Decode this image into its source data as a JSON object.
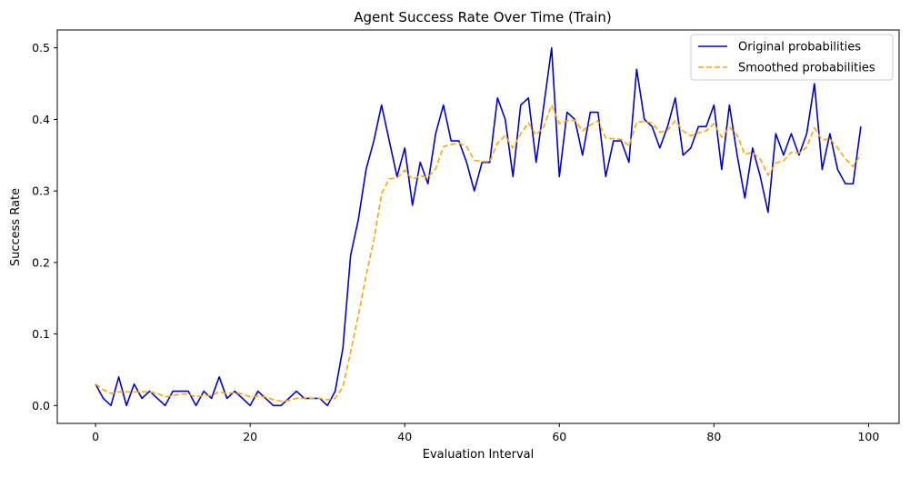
{
  "chart_data": {
    "type": "line",
    "title": "Agent Success Rate Over Time (Train)",
    "xlabel": "Evaluation Interval",
    "ylabel": "Success Rate",
    "xlim": [
      -4.95,
      103.95
    ],
    "ylim": [
      -0.025,
      0.525
    ],
    "xticks": [
      0,
      20,
      40,
      60,
      80,
      100
    ],
    "yticks": [
      0.0,
      0.1,
      0.2,
      0.3,
      0.4,
      0.5
    ],
    "xtick_labels": [
      "0",
      "20",
      "40",
      "60",
      "80",
      "100"
    ],
    "ytick_labels": [
      "0.0",
      "0.1",
      "0.2",
      "0.3",
      "0.4",
      "0.5"
    ],
    "grid": false,
    "legend_position": "top-right",
    "x": [
      0,
      1,
      2,
      3,
      4,
      5,
      6,
      7,
      8,
      9,
      10,
      11,
      12,
      13,
      14,
      15,
      16,
      17,
      18,
      19,
      20,
      21,
      22,
      23,
      24,
      25,
      26,
      27,
      28,
      29,
      30,
      31,
      32,
      33,
      34,
      35,
      36,
      37,
      38,
      39,
      40,
      41,
      42,
      43,
      44,
      45,
      46,
      47,
      48,
      49,
      50,
      51,
      52,
      53,
      54,
      55,
      56,
      57,
      58,
      59,
      60,
      61,
      62,
      63,
      64,
      65,
      66,
      67,
      68,
      69,
      70,
      71,
      72,
      73,
      74,
      75,
      76,
      77,
      78,
      79,
      80,
      81,
      82,
      83,
      84,
      85,
      86,
      87,
      88,
      89,
      90,
      91,
      92,
      93,
      94,
      95,
      96,
      97,
      98,
      99
    ],
    "series": [
      {
        "name": "Original probabilities",
        "color": "#0000cc",
        "style": "solid",
        "values": [
          0.03,
          0.01,
          0.0,
          0.04,
          0.0,
          0.03,
          0.01,
          0.02,
          0.01,
          0.0,
          0.02,
          0.02,
          0.02,
          0.0,
          0.02,
          0.01,
          0.04,
          0.01,
          0.02,
          0.01,
          0.0,
          0.02,
          0.01,
          0.0,
          0.0,
          0.01,
          0.02,
          0.01,
          0.01,
          0.01,
          0.0,
          0.02,
          0.08,
          0.21,
          0.26,
          0.33,
          0.37,
          0.42,
          0.37,
          0.32,
          0.36,
          0.28,
          0.34,
          0.31,
          0.38,
          0.42,
          0.37,
          0.37,
          0.34,
          0.3,
          0.34,
          0.34,
          0.43,
          0.4,
          0.32,
          0.42,
          0.43,
          0.34,
          0.42,
          0.5,
          0.32,
          0.41,
          0.4,
          0.35,
          0.41,
          0.41,
          0.32,
          0.37,
          0.37,
          0.34,
          0.47,
          0.4,
          0.39,
          0.36,
          0.39,
          0.43,
          0.35,
          0.36,
          0.39,
          0.39,
          0.42,
          0.33,
          0.42,
          0.35,
          0.29,
          0.36,
          0.32,
          0.27,
          0.38,
          0.35,
          0.38,
          0.35,
          0.38,
          0.45,
          0.33,
          0.38,
          0.33,
          0.31,
          0.31,
          0.39
        ]
      },
      {
        "name": "Smoothed probabilities",
        "color": "#ffa500",
        "style": "dashed",
        "values": [
          0.03,
          0.022,
          0.017,
          0.019,
          0.019,
          0.019,
          0.019,
          0.019,
          0.017,
          0.012,
          0.014,
          0.016,
          0.016,
          0.012,
          0.014,
          0.014,
          0.019,
          0.017,
          0.018,
          0.016,
          0.012,
          0.013,
          0.012,
          0.008,
          0.006,
          0.007,
          0.01,
          0.01,
          0.01,
          0.01,
          0.008,
          0.01,
          0.026,
          0.075,
          0.126,
          0.182,
          0.231,
          0.296,
          0.317,
          0.318,
          0.329,
          0.316,
          0.321,
          0.319,
          0.331,
          0.362,
          0.365,
          0.367,
          0.362,
          0.343,
          0.341,
          0.341,
          0.367,
          0.377,
          0.36,
          0.38,
          0.395,
          0.378,
          0.39,
          0.42,
          0.394,
          0.398,
          0.399,
          0.384,
          0.392,
          0.398,
          0.374,
          0.373,
          0.372,
          0.363,
          0.396,
          0.397,
          0.395,
          0.382,
          0.385,
          0.398,
          0.384,
          0.377,
          0.381,
          0.384,
          0.394,
          0.375,
          0.389,
          0.378,
          0.351,
          0.354,
          0.344,
          0.322,
          0.339,
          0.342,
          0.354,
          0.353,
          0.361,
          0.388,
          0.371,
          0.373,
          0.36,
          0.345,
          0.334,
          0.351
        ]
      }
    ]
  }
}
